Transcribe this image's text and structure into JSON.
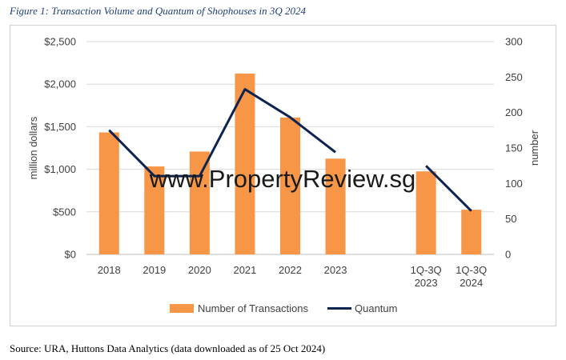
{
  "figure_title": "Figure 1: Transaction Volume and Quantum of Shophouses in 3Q 2024",
  "source_note": "Source: URA, Huttons Data Analytics (data downloaded as of 25 Oct 2024)",
  "watermark": "www.PropertyReview.sg",
  "colors": {
    "bar": "#f79646",
    "line": "#0d2453",
    "grid": "#d9d9d9",
    "text": "#404040"
  },
  "chart_data": {
    "type": "bar",
    "categories": [
      "2018",
      "2019",
      "2020",
      "2021",
      "2022",
      "2023",
      "",
      "1Q-3Q 2023",
      "1Q-3Q 2024"
    ],
    "category_lines": [
      [
        "2018"
      ],
      [
        "2019"
      ],
      [
        "2020"
      ],
      [
        "2021"
      ],
      [
        "2022"
      ],
      [
        "2023"
      ],
      [],
      [
        "1Q-3Q",
        "2023"
      ],
      [
        "1Q-3Q",
        "2024"
      ]
    ],
    "left_axis": {
      "label": "million dollars",
      "range": [
        0,
        2500
      ],
      "ticks": [
        0,
        500,
        1000,
        1500,
        2000,
        2500
      ],
      "tick_labels": [
        "$0",
        "$500",
        "$1,000",
        "$1,500",
        "$2,000",
        "$2,500"
      ]
    },
    "right_axis": {
      "label": "number",
      "range": [
        0,
        300
      ],
      "ticks": [
        0,
        50,
        100,
        150,
        200,
        250,
        300
      ],
      "tick_labels": [
        "0",
        "50",
        "100",
        "150",
        "200",
        "250",
        "300"
      ]
    },
    "series": [
      {
        "name": "Number of Transactions",
        "type": "bar",
        "axis": "right",
        "values": [
          172,
          124,
          145,
          255,
          193,
          135,
          null,
          117,
          63
        ]
      },
      {
        "name": "Quantum",
        "type": "line",
        "axis": "left",
        "values": [
          1460,
          920,
          920,
          1940,
          1610,
          1200,
          null,
          1040,
          510
        ]
      }
    ],
    "grid": true,
    "legend": "bottom"
  }
}
